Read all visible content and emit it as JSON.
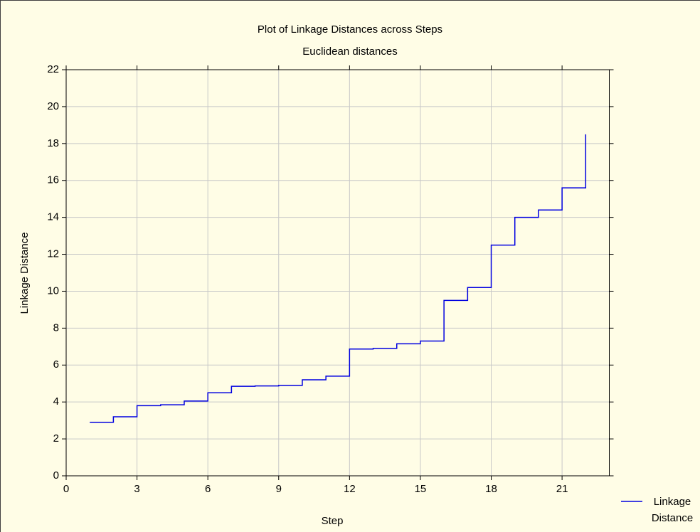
{
  "chart_data": {
    "type": "line",
    "drawstyle": "steps-post",
    "title": "Plot of Linkage Distances across Steps",
    "subtitle": "Euclidean distances",
    "xlabel": "Step",
    "ylabel": "Linkage Distance",
    "x": [
      1,
      2,
      3,
      4,
      5,
      6,
      7,
      8,
      9,
      10,
      11,
      12,
      13,
      14,
      15,
      16,
      17,
      18,
      19,
      20,
      21,
      22
    ],
    "series": [
      {
        "name": "Linkage Distance",
        "color": "#0000e0",
        "values": [
          2.9,
          3.2,
          3.8,
          3.85,
          4.05,
          4.5,
          4.85,
          4.87,
          4.9,
          5.2,
          5.4,
          6.87,
          6.9,
          7.15,
          7.3,
          9.5,
          10.2,
          12.5,
          14.0,
          14.4,
          15.6,
          18.5
        ]
      }
    ],
    "xlim": [
      0,
      23
    ],
    "xticks": [
      0,
      3,
      6,
      9,
      12,
      15,
      18,
      21
    ],
    "ylim": [
      0,
      22
    ],
    "yticks": [
      0,
      2,
      4,
      6,
      8,
      10,
      12,
      14,
      16,
      18,
      20,
      22
    ],
    "grid": true,
    "legend": "lower right"
  }
}
